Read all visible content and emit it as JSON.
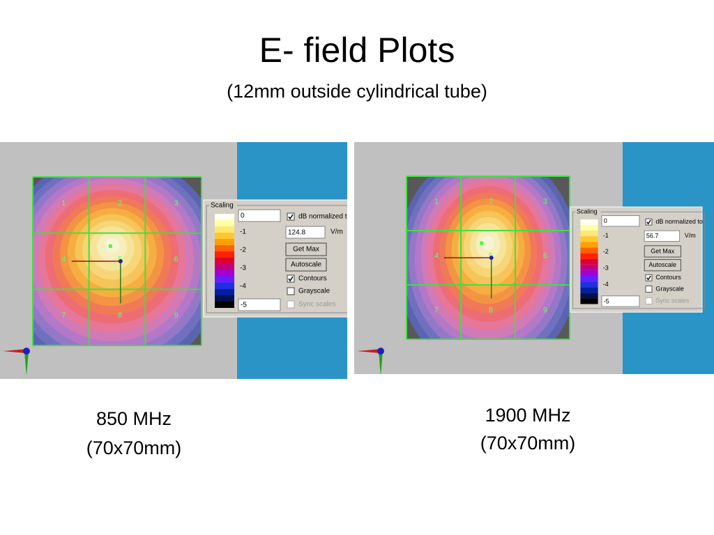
{
  "title": "E- field Plots",
  "subtitle": "(12mm outside cylindrical tube)",
  "panels": [
    {
      "grid_labels": [
        "1",
        "2",
        "3",
        "4",
        "5",
        "6",
        "7",
        "8",
        "9"
      ],
      "scaling": {
        "legend": "Scaling",
        "max": "0",
        "normalize": "dB normalized t",
        "value": "124.8",
        "unit": "V/m",
        "get_max": "Get Max",
        "autoscale": "Autoscale",
        "contours": "Contours",
        "grayscale": "Grayscale",
        "sync": "Sync scales",
        "min": "-5",
        "scale_labels": [
          "-1",
          "-2",
          "-3",
          "-4"
        ]
      },
      "caption": [
        "850 MHz",
        "(70x70mm)"
      ]
    },
    {
      "grid_labels": [
        "1",
        "2",
        "3",
        "4",
        "5",
        "6",
        "7",
        "8",
        "9"
      ],
      "scaling": {
        "legend": "Scaling",
        "max": "0",
        "normalize": "dB normalized to",
        "value": "56.7",
        "unit": "V/m",
        "get_max": "Get Max",
        "autoscale": "Autoscale",
        "contours": "Contours",
        "grayscale": "Grayscale",
        "sync": "Sync scales",
        "min": "-5",
        "scale_labels": [
          "-1",
          "-2",
          "-3",
          "-4"
        ]
      },
      "caption": [
        "1900 MHz",
        "(70x70mm)"
      ]
    }
  ]
}
